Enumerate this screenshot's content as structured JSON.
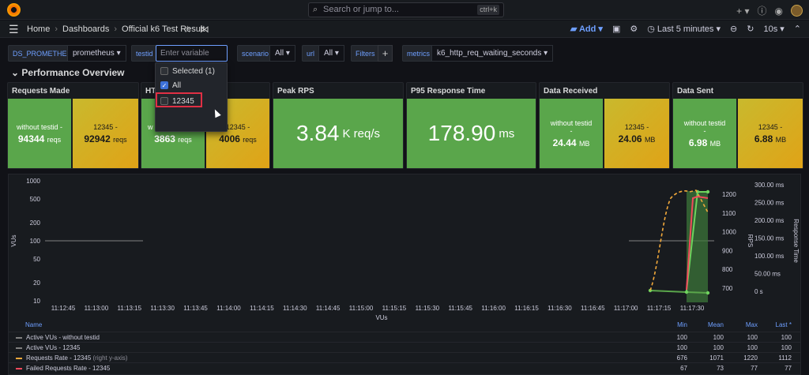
{
  "topbar": {
    "search_placeholder": "Search or jump to...",
    "search_shortcut": "ctrl+k",
    "icons": [
      "plus-icon",
      "help-icon",
      "rss-icon",
      "avatar"
    ]
  },
  "breadcrumb": {
    "home": "Home",
    "dashboards": "Dashboards",
    "current": "Official k6 Test Result"
  },
  "nav_right": {
    "add": "Add",
    "time_range": "Last 5 minutes",
    "refresh": "10s"
  },
  "variables": {
    "ds_label": "DS_PROMETHEUS",
    "ds_value": "prometheus",
    "testid_label": "testid",
    "testid_placeholder": "Enter variable value",
    "scenario_label": "scenario",
    "scenario_value": "All",
    "url_label": "url",
    "url_value": "All",
    "filters_label": "Filters",
    "metrics_label": "metrics",
    "metrics_value": "k6_http_req_waiting_seconds"
  },
  "dropdown": {
    "selected": "Selected (1)",
    "all": "All",
    "option": "12345"
  },
  "row_title": "Performance Overview",
  "panels": {
    "requests_made": {
      "title": "Requests Made",
      "a_label": "without testid -",
      "a_value": "94344",
      "a_unit": "reqs",
      "b_label": "12345 -",
      "b_value": "92942",
      "b_unit": "reqs"
    },
    "http_failures": {
      "title": "HT",
      "a_label": "w",
      "a_value": "3863",
      "a_unit": "reqs",
      "b_label": "12345 -",
      "b_value": "4006",
      "b_unit": "reqs"
    },
    "peak_rps": {
      "title": "Peak RPS",
      "value": "3.84",
      "unit": "K req/s"
    },
    "p95": {
      "title": "P95 Response Time",
      "value": "178.90",
      "unit": "ms"
    },
    "data_received": {
      "title": "Data Received",
      "a_label": "without testid",
      "a_dash": "-",
      "a_value": "24.44",
      "a_unit": "MB",
      "b_label": "12345 -",
      "b_value": "24.06",
      "b_unit": "MB"
    },
    "data_sent": {
      "title": "Data Sent",
      "a_label": "without testid",
      "a_dash": "-",
      "a_value": "6.98",
      "a_unit": "MB",
      "b_label": "12345 -",
      "b_value": "6.88",
      "b_unit": "MB"
    }
  },
  "chart_data": {
    "type": "line",
    "xlabel": "VUs",
    "ylabel_left": "VUs",
    "ylabel_rps": "RPS",
    "ylabel_right": "Response Time",
    "x_ticks": [
      "11:12:45",
      "11:13:00",
      "11:13:15",
      "11:13:30",
      "11:13:45",
      "11:14:00",
      "11:14:15",
      "11:14:30",
      "11:14:45",
      "11:15:00",
      "11:15:15",
      "11:15:30",
      "11:15:45",
      "11:16:00",
      "11:16:15",
      "11:16:30",
      "11:16:45",
      "11:17:00",
      "11:17:15",
      "11:17:30"
    ],
    "y_left_ticks": [
      "1000",
      "500",
      "200",
      "100",
      "50",
      "20",
      "10"
    ],
    "y_left_scale": "log",
    "y_rps_ticks": [
      "1200",
      "1100",
      "1000",
      "900",
      "800",
      "700"
    ],
    "y_rt_ticks": [
      "300.00 ms",
      "250.00 ms",
      "200.00 ms",
      "150.00 ms",
      "100.00 ms",
      "50.00 ms",
      "0 s"
    ],
    "series": [
      {
        "name": "Active VUs - without testid",
        "color": "#808080"
      },
      {
        "name": "Active VUs - 12345",
        "color": "#808080"
      },
      {
        "name": "Requests Rate - 12345",
        "axis_note": "(right y-axis)",
        "color": "#f2a93b"
      },
      {
        "name": "Failed Requests Rate - 12345",
        "color": "#f2495c"
      }
    ],
    "legend_columns": [
      "Name",
      "Min",
      "Mean",
      "Max",
      "Last *"
    ],
    "legend_rows": [
      {
        "min": "100",
        "mean": "100",
        "max": "100",
        "last": "100"
      },
      {
        "min": "100",
        "mean": "100",
        "max": "100",
        "last": "100"
      },
      {
        "min": "676",
        "mean": "1071",
        "max": "1220",
        "last": "1112"
      },
      {
        "min": "67",
        "mean": "73",
        "max": "77",
        "last": "77"
      }
    ]
  }
}
